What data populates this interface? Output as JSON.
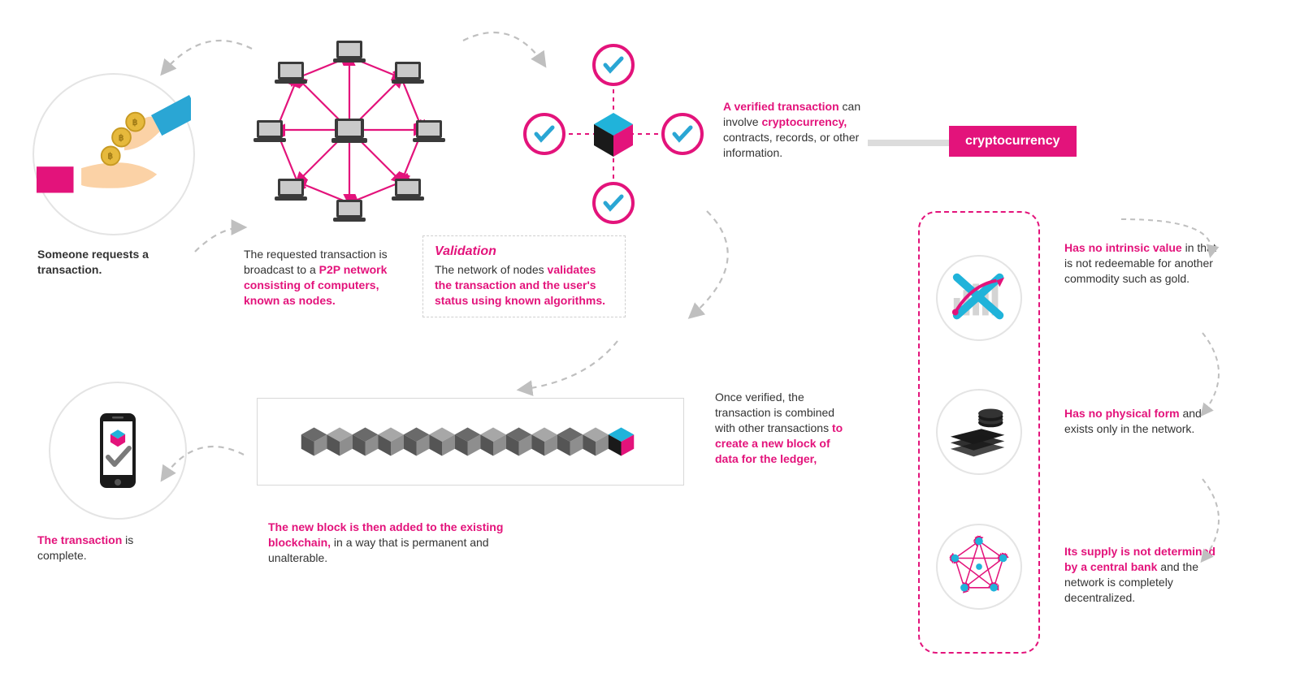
{
  "colors": {
    "pink": "#e3137b",
    "cyan": "#20b3da",
    "blue_accent": "#2aa6d4",
    "dark_text": "#333333",
    "light_border": "#dcdcdc",
    "arrow_gray": "#bfbfbf",
    "block_gray_light": "#a7a7a7",
    "block_gray_dark": "#6a6a6a",
    "coin_gold": "#e6b93c",
    "skin": "#fbd2a6",
    "laptop_body": "#3a3a3a",
    "laptop_screen": "#c9c9c9"
  },
  "step1": {
    "text": "Someone requests a transaction."
  },
  "step2": {
    "prefix": "The requested transaction is broadcast to a ",
    "bold": "P2P network consisting of computers, known as nodes."
  },
  "validation": {
    "title": "Validation",
    "prefix": "The network of nodes ",
    "bold": "validates the transaction and the user's status using known algorithms."
  },
  "step3": {
    "bold1": "A verified transaction ",
    "mid1": "can involve ",
    "bold2": "cryptocurrency, ",
    "rest": "contracts, records, or other information."
  },
  "crypto_label": "cryptocurrency",
  "step4": {
    "prefix": "Once verified, the transaction is combined with other transactions ",
    "bold": "to create a new block of data for the ledger,"
  },
  "step5": {
    "bold": "The new block is then added to the existing blockchain, ",
    "rest": "in a way that is permanent and unalterable."
  },
  "step6": {
    "bold": "The transaction ",
    "rest": "is complete."
  },
  "crypto_traits": {
    "t1_bold": "Has no intrinsic value ",
    "t1_rest": "in that is not redeemable for another commodity such as gold.",
    "t2_bold": "Has no physical form ",
    "t2_rest": "and exists only in the network.",
    "t3_bold": "Its supply is not determined by a central bank ",
    "t3_rest": "and the network is completely decentralized."
  },
  "diagram": {
    "type": "flowchart",
    "network_node_count": 9,
    "check_badge_count": 4,
    "chain_block_count": 13
  }
}
